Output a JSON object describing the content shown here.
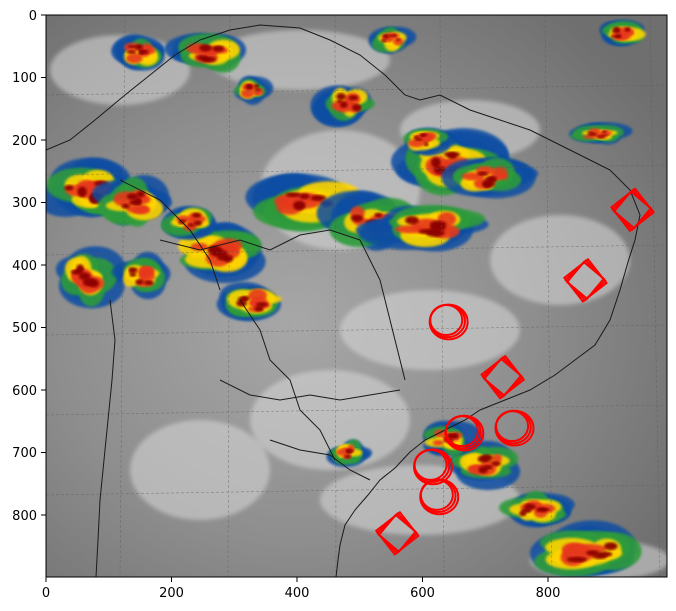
{
  "figure": {
    "description_of_content": "",
    "image_type": "infrared satellite image with enhanced colour cloud tops over South America, with red circular/diamond markers",
    "xlim": [
      0,
      990
    ],
    "ylim": [
      900,
      0
    ],
    "x_ticks": [
      "0",
      "200",
      "400",
      "600",
      "800"
    ],
    "y_ticks": [
      "0",
      "100",
      "200",
      "300",
      "400",
      "500",
      "600",
      "700",
      "800"
    ],
    "grid": "dashed lat/lon graticule",
    "colors": {
      "marker": "#ff0000",
      "cloud_cold": "#8b0000",
      "cloud_mid": "#ffd400",
      "cloud_warm": "#2e9b3b",
      "cloud_cool": "#0a4ea3",
      "background_gray": "#8c8c8c"
    }
  },
  "markers": [
    {
      "shape": "diamond",
      "x": 935,
      "y": 312
    },
    {
      "shape": "diamond",
      "x": 860,
      "y": 425
    },
    {
      "shape": "circle",
      "x": 640,
      "y": 490
    },
    {
      "shape": "diamond",
      "x": 728,
      "y": 580
    },
    {
      "shape": "circle",
      "x": 665,
      "y": 668
    },
    {
      "shape": "circle",
      "x": 745,
      "y": 660
    },
    {
      "shape": "circle",
      "x": 615,
      "y": 722
    },
    {
      "shape": "circle",
      "x": 625,
      "y": 770
    },
    {
      "shape": "diamond",
      "x": 560,
      "y": 830
    }
  ]
}
